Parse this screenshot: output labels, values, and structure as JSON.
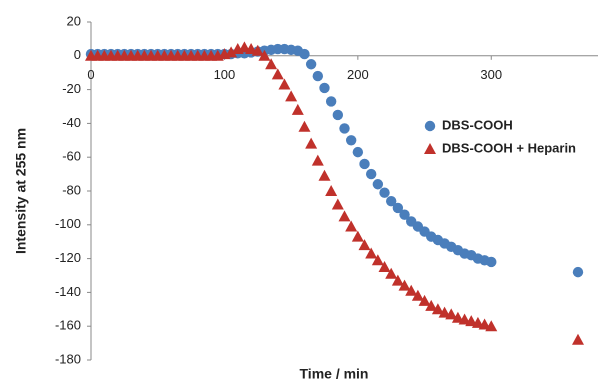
{
  "chart_data": {
    "type": "scatter",
    "x_label": "Time / min",
    "y_label": "Intensity at 255 nm",
    "x": [
      0,
      5,
      10,
      15,
      20,
      25,
      30,
      35,
      40,
      45,
      50,
      55,
      60,
      65,
      70,
      75,
      80,
      85,
      90,
      95,
      100,
      105,
      110,
      115,
      120,
      125,
      130,
      135,
      140,
      145,
      150,
      155,
      160,
      165,
      170,
      175,
      180,
      185,
      190,
      195,
      200,
      205,
      210,
      215,
      220,
      225,
      230,
      235,
      240,
      245,
      250,
      255,
      260,
      265,
      270,
      275,
      280,
      285,
      290,
      295,
      300,
      365
    ],
    "series": [
      {
        "name": "DBS-COOH",
        "color": "#4a7ebb",
        "marker": "circle",
        "values": [
          1,
          1,
          1,
          1,
          1,
          1,
          1,
          1,
          1,
          1,
          1,
          1,
          1,
          1,
          1,
          1,
          1,
          1,
          1,
          1,
          1,
          1,
          1.5,
          1.5,
          2,
          2.5,
          3,
          3.5,
          4,
          4,
          3.5,
          3,
          1,
          -5,
          -12,
          -19,
          -27,
          -35,
          -43,
          -50,
          -57,
          -64,
          -70,
          -76,
          -81,
          -86,
          -90,
          -94,
          -98,
          -101,
          -104,
          -107,
          -109,
          -111,
          -113,
          -115,
          -117,
          -118,
          -120,
          -121,
          -122,
          -128
        ]
      },
      {
        "name": "DBS-COOH + Heparin",
        "color": "#c0312b",
        "marker": "triangle",
        "values": [
          0,
          0,
          0,
          0,
          0,
          0,
          0,
          0,
          0,
          0,
          0,
          0,
          0,
          0,
          0,
          0,
          0,
          0,
          0,
          0,
          1,
          2,
          4,
          5,
          4,
          3,
          0,
          -5,
          -11,
          -17,
          -24,
          -32,
          -42,
          -52,
          -62,
          -71,
          -80,
          -88,
          -95,
          -101,
          -107,
          -112,
          -117,
          -121,
          -125,
          -129,
          -133,
          -136,
          -139,
          -142,
          -145,
          -148,
          -150,
          -152,
          -153,
          -155,
          -156,
          -157,
          -158,
          -159,
          -160,
          -168
        ]
      }
    ],
    "xlim": [
      0,
      380
    ],
    "xticks": [
      0,
      100,
      200,
      300
    ],
    "ylim": [
      -180,
      20
    ],
    "yticks": [
      20,
      0,
      -20,
      -40,
      -60,
      -80,
      -100,
      -120,
      -140,
      -160,
      -180
    ],
    "grid": false,
    "legend": "right"
  }
}
